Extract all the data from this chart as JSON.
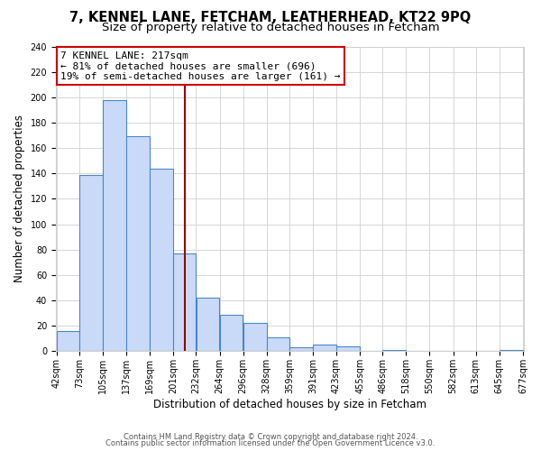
{
  "title": "7, KENNEL LANE, FETCHAM, LEATHERHEAD, KT22 9PQ",
  "subtitle": "Size of property relative to detached houses in Fetcham",
  "xlabel": "Distribution of detached houses by size in Fetcham",
  "ylabel": "Number of detached properties",
  "footer_line1": "Contains HM Land Registry data © Crown copyright and database right 2024.",
  "footer_line2": "Contains public sector information licensed under the Open Government Licence v3.0.",
  "bar_left_edges": [
    42,
    73,
    105,
    137,
    169,
    201,
    232,
    264,
    296,
    328,
    359,
    391,
    423,
    455,
    486,
    518,
    550,
    582,
    613,
    645
  ],
  "bar_widths": [
    31,
    32,
    32,
    32,
    32,
    31,
    32,
    32,
    32,
    31,
    32,
    32,
    32,
    31,
    32,
    32,
    32,
    31,
    32,
    32
  ],
  "bar_heights": [
    16,
    139,
    198,
    169,
    144,
    77,
    42,
    29,
    22,
    11,
    3,
    5,
    4,
    0,
    1,
    0,
    0,
    0,
    0,
    1
  ],
  "tick_labels": [
    "42sqm",
    "73sqm",
    "105sqm",
    "137sqm",
    "169sqm",
    "201sqm",
    "232sqm",
    "264sqm",
    "296sqm",
    "328sqm",
    "359sqm",
    "391sqm",
    "423sqm",
    "455sqm",
    "486sqm",
    "518sqm",
    "550sqm",
    "582sqm",
    "613sqm",
    "645sqm",
    "677sqm"
  ],
  "bar_color": "#c9daf8",
  "bar_edge_color": "#4a86c8",
  "vline_x": 217,
  "vline_color": "#990000",
  "annotation_text_line1": "7 KENNEL LANE: 217sqm",
  "annotation_text_line2": "← 81% of detached houses are smaller (696)",
  "annotation_text_line3": "19% of semi-detached houses are larger (161) →",
  "annotation_box_edgecolor": "#cc0000",
  "ylim": [
    0,
    240
  ],
  "yticks": [
    0,
    20,
    40,
    60,
    80,
    100,
    120,
    140,
    160,
    180,
    200,
    220,
    240
  ],
  "grid_color": "#d0d0d0",
  "bg_color": "#ffffff",
  "title_fontsize": 10.5,
  "subtitle_fontsize": 9.5,
  "tick_fontsize": 7.0,
  "ylabel_fontsize": 8.5,
  "xlabel_fontsize": 8.5,
  "footer_fontsize": 6.0,
  "annot_fontsize": 8.0
}
